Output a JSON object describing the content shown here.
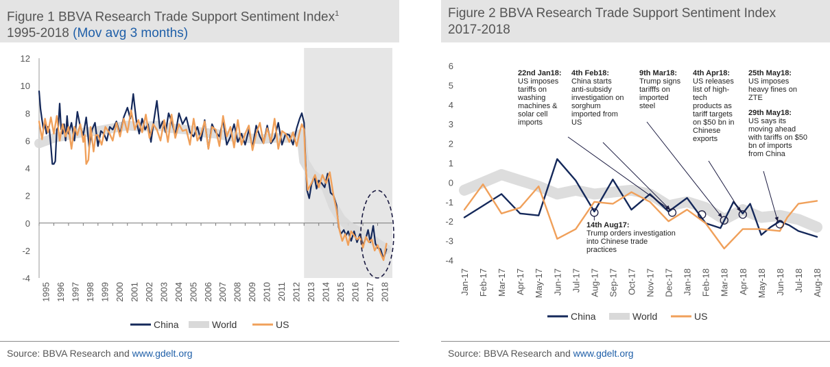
{
  "figure1": {
    "title_line1": "Figure 1 BBVA Research Trade Support Sentiment Index",
    "title_sup": "1",
    "title_line2": "1995-2018",
    "title_accent": "(Mov avg 3 months)",
    "source_text": "Source: BBVA Research and ",
    "source_link": "www.gdelt.org"
  },
  "figure2": {
    "title_line1": "Figure 2 BBVA Research Trade Support Sentiment Index",
    "title_line2": "2017-2018",
    "source_text": "Source: BBVA Research and ",
    "source_link": "www.gdelt.org"
  },
  "colors": {
    "china": "#14285a",
    "world": "#d9d9d9",
    "us": "#f0a05a",
    "shade": "#e6e6e6"
  },
  "chart_data": [
    {
      "type": "line",
      "ylim": [
        -4,
        12
      ],
      "yticks": [
        -4,
        -2,
        0,
        2,
        4,
        6,
        8,
        10,
        12
      ],
      "xlim": [
        1995,
        2019
      ],
      "categories": [
        "1995",
        "1996",
        "1997",
        "1998",
        "1999",
        "2000",
        "2001",
        "2002",
        "2003",
        "2004",
        "2005",
        "2006",
        "2007",
        "2008",
        "2009",
        "2010",
        "2011",
        "2012",
        "2013",
        "2014",
        "2015",
        "2016",
        "2017",
        "2018"
      ],
      "shaded_from": 2013,
      "grid": false,
      "legend": "bottom",
      "series": [
        {
          "name": "China",
          "x": [
            1995,
            1995.1,
            1995.2,
            1995.3,
            1995.4,
            1995.5,
            1995.6,
            1995.7,
            1995.8,
            1995.9,
            1996,
            1996.1,
            1996.2,
            1996.3,
            1996.4,
            1996.5,
            1996.6,
            1996.7,
            1996.8,
            1996.9,
            1997,
            1997.2,
            1997.4,
            1997.6,
            1997.8,
            1998,
            1998.2,
            1998.4,
            1998.6,
            1998.8,
            1999,
            1999.2,
            1999.4,
            1999.6,
            1999.8,
            2000,
            2000.25,
            2000.5,
            2000.75,
            2001,
            2001.2,
            2001.4,
            2001.6,
            2001.8,
            2002,
            2002.2,
            2002.4,
            2002.6,
            2002.8,
            2003,
            2003.2,
            2003.4,
            2003.6,
            2003.8,
            2004,
            2004.25,
            2004.5,
            2004.75,
            2005,
            2005.25,
            2005.5,
            2005.75,
            2006,
            2006.25,
            2006.5,
            2006.75,
            2007,
            2007.25,
            2007.5,
            2007.75,
            2008,
            2008.25,
            2008.5,
            2008.75,
            2009,
            2009.25,
            2009.5,
            2009.75,
            2010,
            2010.25,
            2010.5,
            2010.75,
            2011,
            2011.25,
            2011.5,
            2011.75,
            2012,
            2012.25,
            2012.5,
            2012.7,
            2012.85,
            2013,
            2013.1,
            2013.2,
            2013.35,
            2013.5,
            2013.7,
            2013.85,
            2014,
            2014.2,
            2014.4,
            2014.6,
            2014.8,
            2015,
            2015.2,
            2015.35,
            2015.5,
            2015.7,
            2015.85,
            2016,
            2016.2,
            2016.4,
            2016.6,
            2016.8,
            2017,
            2017.2,
            2017.35,
            2017.5,
            2017.7,
            2017.85,
            2018,
            2018.2,
            2018.4,
            2018.6
          ],
          "y": [
            9.6,
            8.3,
            7.5,
            6.8,
            7.2,
            6.5,
            7.0,
            6.8,
            5.6,
            4.3,
            4.3,
            4.5,
            6.8,
            7.0,
            8.7,
            6.8,
            6.5,
            7.2,
            6.0,
            7.8,
            6.5,
            7.3,
            6.0,
            8.1,
            7.0,
            6.4,
            7.7,
            5.5,
            6.8,
            7.3,
            5.6,
            6.7,
            6.5,
            6.0,
            7.0,
            6.8,
            7.4,
            6.5,
            7.7,
            8.4,
            7.6,
            9.4,
            7.5,
            6.5,
            7.6,
            6.8,
            7.2,
            5.9,
            7.5,
            8.9,
            6.9,
            7.4,
            6.6,
            8.0,
            7.4,
            6.4,
            8.0,
            7.2,
            7.7,
            6.6,
            6.3,
            7.0,
            6.0,
            7.5,
            5.4,
            7.2,
            6.6,
            6.3,
            7.5,
            5.7,
            6.3,
            7.2,
            5.9,
            6.5,
            5.7,
            6.8,
            5.5,
            7.1,
            6.3,
            5.8,
            7.1,
            5.8,
            6.2,
            7.3,
            5.7,
            6.5,
            6.4,
            5.7,
            6.9,
            7.6,
            8.0,
            7.3,
            4.6,
            2.4,
            1.8,
            2.8,
            3.4,
            2.5,
            3.1,
            2.9,
            2.6,
            3.6,
            2.2,
            2.0,
            1.3,
            -0.3,
            -0.8,
            -0.5,
            -0.9,
            -0.6,
            -1.3,
            -0.6,
            -1.4,
            -0.8,
            -1.6,
            -1.1,
            -0.5,
            -1.4,
            -0.2,
            -1.5,
            -1.8,
            -1.9,
            -2.6,
            -1.9
          ]
        },
        {
          "name": "World",
          "x": [
            1995,
            1996,
            1997,
            1998,
            1999,
            2000,
            2001,
            2002,
            2003,
            2004,
            2005,
            2006,
            2007,
            2008,
            2009,
            2010,
            2011,
            2012,
            2012.8,
            2013,
            2013.5,
            2014,
            2014.5,
            2015,
            2015.5,
            2016,
            2016.5,
            2017,
            2017.5,
            2018,
            2018.6
          ],
          "y": [
            5.8,
            6.2,
            6.4,
            6.6,
            6.7,
            6.9,
            7.1,
            7.0,
            7.1,
            6.9,
            6.8,
            6.6,
            6.5,
            6.3,
            6.2,
            6.1,
            6.2,
            6.2,
            6.5,
            4.5,
            3.6,
            3.2,
            2.6,
            1.2,
            0.3,
            -0.2,
            -0.5,
            -0.8,
            -1.1,
            -1.5,
            -1.9
          ]
        },
        {
          "name": "US",
          "x": [
            1995,
            1995.2,
            1995.4,
            1995.6,
            1995.8,
            1996,
            1996.2,
            1996.4,
            1996.6,
            1996.8,
            1997,
            1997.2,
            1997.4,
            1997.6,
            1997.8,
            1998,
            1998.1,
            1998.2,
            1998.35,
            1998.5,
            1998.7,
            1998.85,
            1999,
            1999.25,
            1999.5,
            1999.75,
            2000,
            2000.25,
            2000.5,
            2000.75,
            2001,
            2001.25,
            2001.5,
            2001.75,
            2002,
            2002.25,
            2002.5,
            2002.75,
            2003,
            2003.25,
            2003.5,
            2003.75,
            2004,
            2004.25,
            2004.5,
            2004.75,
            2005,
            2005.25,
            2005.5,
            2005.75,
            2006,
            2006.25,
            2006.5,
            2006.75,
            2007,
            2007.25,
            2007.5,
            2007.75,
            2008,
            2008.25,
            2008.5,
            2008.75,
            2009,
            2009.25,
            2009.5,
            2009.75,
            2010,
            2010.25,
            2010.5,
            2010.75,
            2011,
            2011.25,
            2011.5,
            2011.75,
            2012,
            2012.25,
            2012.5,
            2012.7,
            2012.85,
            2013,
            2013.1,
            2013.25,
            2013.5,
            2013.75,
            2014,
            2014.25,
            2014.5,
            2014.75,
            2015,
            2015.2,
            2015.4,
            2015.6,
            2015.8,
            2016,
            2016.2,
            2016.4,
            2016.6,
            2016.8,
            2017,
            2017.2,
            2017.4,
            2017.6,
            2017.8,
            2018,
            2018.2,
            2018.4,
            2018.6
          ],
          "y": [
            7.4,
            6.1,
            7.6,
            6.6,
            7.7,
            6.5,
            7.8,
            6.0,
            7.2,
            6.3,
            7.0,
            5.4,
            7.0,
            6.4,
            7.2,
            5.9,
            6.4,
            4.3,
            4.6,
            7.0,
            5.2,
            6.4,
            6.4,
            5.7,
            7.0,
            6.6,
            6.0,
            7.3,
            6.3,
            7.6,
            6.6,
            8.2,
            6.8,
            7.5,
            6.6,
            7.9,
            6.2,
            7.2,
            6.8,
            6.0,
            7.5,
            5.9,
            7.9,
            6.2,
            7.2,
            6.7,
            6.8,
            5.7,
            7.6,
            6.0,
            6.5,
            7.4,
            5.4,
            7.0,
            6.8,
            5.6,
            7.8,
            6.3,
            7.0,
            5.5,
            7.5,
            5.7,
            6.5,
            7.1,
            5.3,
            6.5,
            7.3,
            5.8,
            6.9,
            5.9,
            7.6,
            5.4,
            6.7,
            6.5,
            5.9,
            6.6,
            5.6,
            6.6,
            7.2,
            6.8,
            4.2,
            2.4,
            2.9,
            3.5,
            2.6,
            3.5,
            2.9,
            3.7,
            2.0,
            1.0,
            -0.5,
            -1.3,
            -0.8,
            -1.6,
            -0.6,
            -0.9,
            -1.2,
            -1.0,
            -1.8,
            -1.0,
            -1.4,
            -1.2,
            -2.0,
            -1.6,
            -2.2,
            -2.7,
            -1.5
          ]
        }
      ]
    },
    {
      "type": "line",
      "ylim": [
        -4,
        6
      ],
      "yticks": [
        -4,
        -3,
        -2,
        -1,
        0,
        1,
        2,
        3,
        4,
        5,
        6
      ],
      "categories": [
        "Jan-17",
        "Feb-17",
        "Mar-17",
        "Apr-17",
        "May-17",
        "Jun-17",
        "Jul-17",
        "Aug-17",
        "Sep-17",
        "Oct-17",
        "Nov-17",
        "Dec-17",
        "Jan-18",
        "Feb-18",
        "Mar-18",
        "Apr-18",
        "May-18",
        "Jun-18",
        "Jul-18",
        "Aug-18"
      ],
      "grid": false,
      "legend": "bottom",
      "series": [
        {
          "name": "China",
          "x": [
            0,
            1,
            2,
            3,
            4,
            5,
            6,
            7,
            8,
            9,
            10,
            11,
            12,
            13,
            13.8,
            14.5,
            15,
            15.4,
            16,
            16.5,
            17,
            17.5,
            18,
            19
          ],
          "y": [
            -1.8,
            -1.2,
            -0.6,
            -1.6,
            -1.7,
            1.2,
            0.1,
            -1.5,
            0.15,
            -1.4,
            -0.6,
            -1.5,
            -0.8,
            -2.1,
            -2.35,
            -1.0,
            -1.6,
            -1.1,
            -2.7,
            -2.3,
            -2.0,
            -2.2,
            -2.5,
            -2.8
          ]
        },
        {
          "name": "World",
          "x": [
            0,
            1,
            2,
            3,
            4,
            5,
            6,
            7,
            8,
            9,
            10,
            11,
            12,
            13,
            14,
            15,
            16,
            17,
            18,
            19
          ],
          "y": [
            -0.4,
            0.0,
            0.4,
            0.1,
            -0.2,
            -0.6,
            -0.4,
            -0.6,
            -0.5,
            -0.4,
            -0.6,
            -1.2,
            -1.0,
            -1.3,
            -1.9,
            -1.4,
            -1.8,
            -1.7,
            -1.9,
            -2.3
          ]
        },
        {
          "name": "US",
          "x": [
            0,
            1,
            2,
            3,
            4,
            5,
            6,
            7,
            8,
            9,
            10,
            11,
            12,
            13,
            14,
            15,
            16,
            17,
            17.4,
            18,
            19
          ],
          "y": [
            -1.4,
            -0.1,
            -1.6,
            -1.3,
            -0.2,
            -2.9,
            -2.4,
            -1.0,
            -1.1,
            -0.5,
            -1.0,
            -2.0,
            -1.4,
            -2.1,
            -3.4,
            -2.4,
            -2.4,
            -2.5,
            -1.8,
            -1.1,
            -0.95
          ]
        }
      ],
      "annotations": [
        {
          "bold": "22nd Jan18:",
          "lines": [
            "US imposes",
            "tariffs on",
            "washing",
            "machines &",
            "solar cell",
            "imports"
          ]
        },
        {
          "bold": "4th Feb18:",
          "lines": [
            "China starts",
            "anti-subsidy",
            "investigation on",
            "sorghum",
            "imported from",
            "US"
          ]
        },
        {
          "bold": "9th Mar18:",
          "lines": [
            "Trump signs",
            "tarifffs on",
            "imported",
            "steel"
          ]
        },
        {
          "bold": "4th Apr18:",
          "lines": [
            "US releases",
            "list of high-",
            "tech",
            "products as",
            "tariff targets",
            "on $50 bn in",
            "Chinese",
            "exports"
          ]
        },
        {
          "bold": "25th May18:",
          "lines": [
            "US imposes",
            "heavy fines on",
            "ZTE"
          ]
        },
        {
          "bold": "29th May18:",
          "lines": [
            "US says its",
            "moving ahead",
            "with tariffs on $50",
            "bn of imports",
            "from China"
          ]
        },
        {
          "bold": "14th Aug17:",
          "lines": [
            "Trump orders investigation",
            "into Chinese trade",
            "practices"
          ]
        }
      ]
    }
  ]
}
